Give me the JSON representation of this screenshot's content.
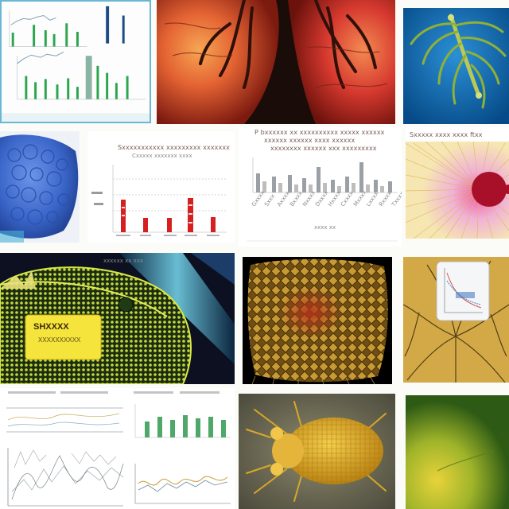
{
  "collage": {
    "tiles": {
      "top_left_chart": {
        "name": "upper-left-bar-chart-panel"
      },
      "organ_closeup": {
        "name": "veined-red-organ-image"
      },
      "blue_spine": {
        "name": "green-spine-on-blue-image"
      },
      "blue_blob": {
        "name": "blue-bubbly-surface-image"
      },
      "middle_bar_chart": {
        "name": "red-lollipop-chart-panel",
        "header_lines": [
          "Sxxxxxxxxxxx xxxxxxxxx xxxxxxx",
          "Cxxxxx xxxxxxx xxxx"
        ]
      },
      "gray_bar_chart": {
        "name": "gray-bars-chart-panel",
        "header_lines": [
          "P bxxxxxx xx xxxxxxxxxx xxxxx xxxxxx",
          "xxxxxx xxxxxx xxxx xxxxxx",
          "xxxxxxxx xxxxxx xxx xxxxxxxxx"
        ],
        "x_tick_labels": [
          "Gxxxx",
          "Sxxx",
          "Axxxx",
          "Bxxxx",
          "Nxxxx",
          "Dxxxx",
          "Hxxxx",
          "Cxxxx",
          "Mxxxx",
          "Lxxxx",
          "Rxxxx",
          "Txxxx"
        ],
        "footer": "xxxx xx"
      },
      "radial_burst": {
        "name": "radial-filament-burst-image",
        "header": "Sxxxxx xxxx xxxx ftxx"
      },
      "green_mesh_leaf": {
        "name": "yellow-mesh-leaf-on-dark-image",
        "label_title": "SHXXXX",
        "label_sub": "XXXXXXXXXX",
        "top_text": "xxxxxx xx xxx"
      },
      "golden_network": {
        "name": "golden-cell-network-image"
      },
      "golden_branching": {
        "name": "golden-branching-panel-with-inset"
      },
      "bottom_left_sketch": {
        "name": "bottom-left-sketch-graphs"
      },
      "bottom_small_charts": {
        "name": "bottom-mini-bar-line-charts"
      },
      "beetle": {
        "name": "yellow-beetle-image"
      },
      "green_gradient": {
        "name": "green-gradient-image"
      }
    }
  },
  "colors": {
    "sky_blue": "#0b74ba",
    "organ_red": "#d63b1c",
    "organ_orange": "#f0882a",
    "deep_blue": "#3a66c9",
    "lollipop_red": "#d62020",
    "gray_bar": "#9aa0a6",
    "green_accent": "#2b9e4a",
    "yellow_glow": "#efe63a",
    "dark_background": "#0c1020",
    "golden": "#caa13a",
    "beetle_yellow": "#e7b52f",
    "green_dark": "#6c8a22"
  }
}
